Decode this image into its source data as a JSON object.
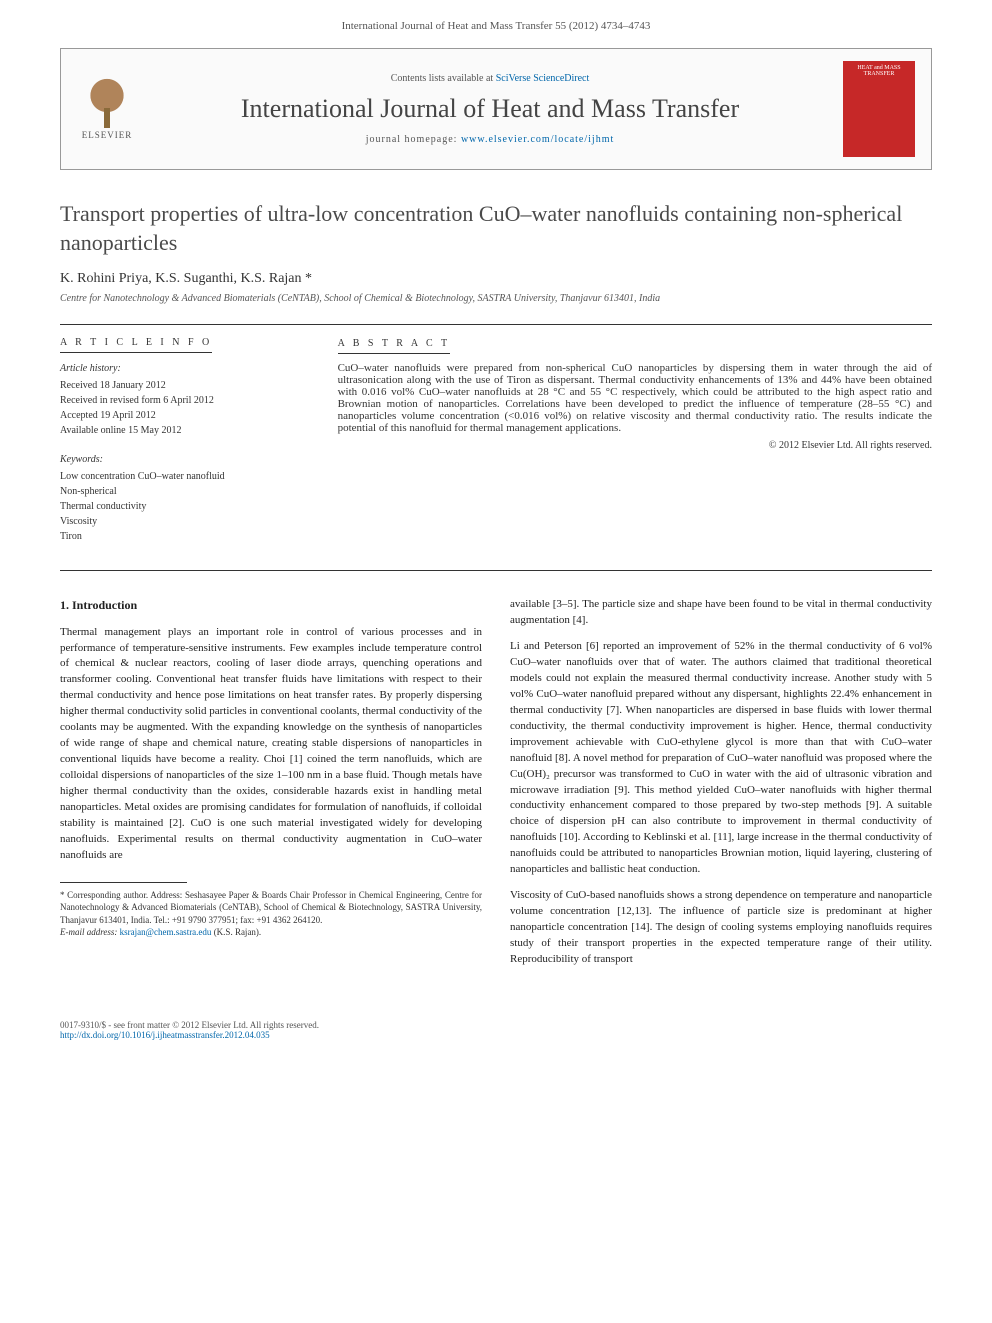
{
  "header_citation": "International Journal of Heat and Mass Transfer 55 (2012) 4734–4743",
  "masthead": {
    "contents_prefix": "Contents lists available at ",
    "contents_link": "SciVerse ScienceDirect",
    "journal_name": "International Journal of Heat and Mass Transfer",
    "homepage_prefix": "journal homepage: ",
    "homepage_url": "www.elsevier.com/locate/ijhmt",
    "publisher": "ELSEVIER",
    "cover_text": "HEAT and MASS TRANSFER"
  },
  "title": "Transport properties of ultra-low concentration CuO–water nanofluids containing non-spherical nanoparticles",
  "authors": "K. Rohini Priya, K.S. Suganthi, K.S. Rajan *",
  "affiliation": "Centre for Nanotechnology & Advanced Biomaterials (CeNTAB), School of Chemical & Biotechnology, SASTRA University, Thanjavur 613401, India",
  "article_info": {
    "label": "A R T I C L E   I N F O",
    "history_heading": "Article history:",
    "history": [
      "Received 18 January 2012",
      "Received in revised form 6 April 2012",
      "Accepted 19 April 2012",
      "Available online 15 May 2012"
    ],
    "keywords_heading": "Keywords:",
    "keywords": [
      "Low concentration CuO–water nanofluid",
      "Non-spherical",
      "Thermal conductivity",
      "Viscosity",
      "Tiron"
    ]
  },
  "abstract": {
    "label": "A B S T R A C T",
    "text": "CuO–water nanofluids were prepared from non-spherical CuO nanoparticles by dispersing them in water through the aid of ultrasonication along with the use of Tiron as dispersant. Thermal conductivity enhancements of 13% and 44% have been obtained with 0.016 vol% CuO–water nanofluids at 28 °C and 55 °C respectively, which could be attributed to the high aspect ratio and Brownian motion of nanoparticles. Correlations have been developed to predict the influence of temperature (28–55 °C) and nanoparticles volume concentration (<0.016 vol%) on relative viscosity and thermal conductivity ratio. The results indicate the potential of this nanofluid for thermal management applications.",
    "copyright": "© 2012 Elsevier Ltd. All rights reserved."
  },
  "body": {
    "section_heading": "1. Introduction",
    "left_paragraphs": [
      "Thermal management plays an important role in control of various processes and in performance of temperature-sensitive instruments. Few examples include temperature control of chemical & nuclear reactors, cooling of laser diode arrays, quenching operations and transformer cooling. Conventional heat transfer fluids have limitations with respect to their thermal conductivity and hence pose limitations on heat transfer rates. By properly dispersing higher thermal conductivity solid particles in conventional coolants, thermal conductivity of the coolants may be augmented. With the expanding knowledge on the synthesis of nanoparticles of wide range of shape and chemical nature, creating stable dispersions of nanoparticles in conventional liquids have become a reality. Choi [1] coined the term nanofluids, which are colloidal dispersions of nanoparticles of the size 1–100 nm in a base fluid. Though metals have higher thermal conductivity than the oxides, considerable hazards exist in handling metal nanoparticles. Metal oxides are promising candidates for formulation of nanofluids, if colloidal stability is maintained [2]. CuO is one such material investigated widely for developing nanofluids. Experimental results on thermal conductivity augmentation in CuO–water nanofluids are"
    ],
    "right_paragraphs": [
      "available [3–5]. The particle size and shape have been found to be vital in thermal conductivity augmentation [4].",
      "Li and Peterson [6] reported an improvement of 52% in the thermal conductivity of 6 vol% CuO–water nanofluids over that of water. The authors claimed that traditional theoretical models could not explain the measured thermal conductivity increase. Another study with 5 vol% CuO–water nanofluid prepared without any dispersant, highlights 22.4% enhancement in thermal conductivity [7]. When nanoparticles are dispersed in base fluids with lower thermal conductivity, the thermal conductivity improvement is higher. Hence, thermal conductivity improvement achievable with CuO-ethylene glycol is more than that with CuO–water nanofluid [8]. A novel method for preparation of CuO–water nanofluid was proposed where the Cu(OH)₂ precursor was transformed to CuO in water with the aid of ultrasonic vibration and microwave irradiation [9]. This method yielded CuO–water nanofluids with higher thermal conductivity enhancement compared to those prepared by two-step methods [9]. A suitable choice of dispersion pH can also contribute to improvement in thermal conductivity of nanofluids [10]. According to Keblinski et al. [11], large increase in the thermal conductivity of nanofluids could be attributed to nanoparticles Brownian motion, liquid layering, clustering of nanoparticles and ballistic heat conduction.",
      "Viscosity of CuO-based nanofluids shows a strong dependence on temperature and nanoparticle volume concentration [12,13]. The influence of particle size is predominant at higher nanoparticle concentration [14]. The design of cooling systems employing nanofluids requires study of their transport properties in the expected temperature range of their utility. Reproducibility of transport"
    ]
  },
  "footnote": {
    "corresponding": "* Corresponding author. Address: Seshasayee Paper & Boards Chair Professor in Chemical Engineering, Centre for Nanotechnology & Advanced Biomaterials (CeNTAB), School of Chemical & Biotechnology, SASTRA University, Thanjavur 613401, India. Tel.: +91 9790 377951; fax: +91 4362 264120.",
    "email_label": "E-mail address: ",
    "email": "ksrajan@chem.sastra.edu",
    "email_suffix": " (K.S. Rajan)."
  },
  "footer": {
    "left_line1": "0017-9310/$ - see front matter © 2012 Elsevier Ltd. All rights reserved.",
    "left_line2": "http://dx.doi.org/10.1016/j.ijheatmasstransfer.2012.04.035"
  }
}
